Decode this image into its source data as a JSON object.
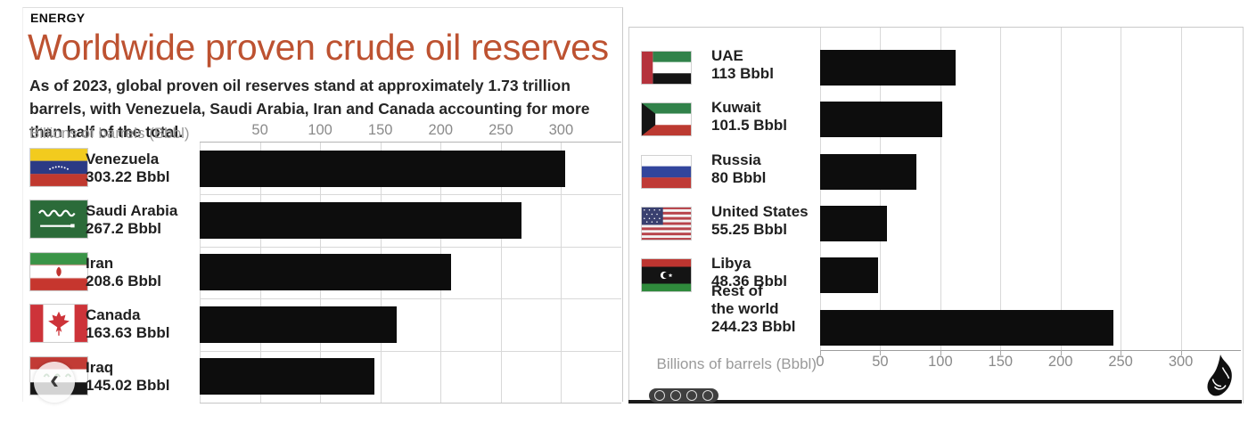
{
  "header": {
    "kicker": "ENERGY",
    "title": "Worldwide proven crude oil reserves",
    "subtitle": "As of 2023, global proven oil reserves stand at approximately 1.73 trillion barrels, with Venezuela, Saudi Arabia, Iran and Canada accounting for more than half of the total.",
    "accent_color": "#bd5231",
    "bar_color": "#0d0d0d",
    "grid_color": "#d8d8d8"
  },
  "chart_data": {
    "type": "bar",
    "orientation": "horizontal",
    "title": "Worldwide proven crude oil reserves",
    "subtitle": "As of 2023, global proven oil reserves stand at approximately 1.73 trillion barrels, with Venezuela, Saudi Arabia, Iran and Canada accounting for more than half of the total.",
    "categories": [
      "Venezuela",
      "Saudi Arabia",
      "Iran",
      "Canada",
      "Iraq",
      "UAE",
      "Kuwait",
      "Russia",
      "United States",
      "Libya",
      "Rest of the world"
    ],
    "values": [
      303.22,
      267.2,
      208.6,
      163.63,
      145.02,
      113,
      101.5,
      80,
      55.25,
      48.36,
      244.23
    ],
    "unit": "Bbbl",
    "xlabel": "Billions of barrels (Bbbl)",
    "xlim": [
      0,
      350
    ],
    "xticks": [
      0,
      50,
      100,
      150,
      200,
      250,
      300
    ],
    "grid": "vertical",
    "legend": "none",
    "bar_color": "#0d0d0d"
  },
  "panels": {
    "left": {
      "axis_label": "Billions of barrels (Bbbl)",
      "ticks": [
        50,
        100,
        150,
        200,
        250,
        300
      ],
      "rows": [
        {
          "country": "Venezuela",
          "lines": [
            "Venezuela"
          ],
          "value": 303.22,
          "value_label": "303.22 Bbbl",
          "flag": "venezuela"
        },
        {
          "country": "Saudi Arabia",
          "lines": [
            "Saudi Arabia"
          ],
          "value": 267.2,
          "value_label": "267.2 Bbbl",
          "flag": "saudi-arabia"
        },
        {
          "country": "Iran",
          "lines": [
            "Iran"
          ],
          "value": 208.6,
          "value_label": "208.6 Bbbl",
          "flag": "iran"
        },
        {
          "country": "Canada",
          "lines": [
            "Canada"
          ],
          "value": 163.63,
          "value_label": "163.63 Bbbl",
          "flag": "canada"
        },
        {
          "country": "Iraq",
          "lines": [
            "Iraq"
          ],
          "value": 145.02,
          "value_label": "145.02 Bbbl",
          "flag": "iraq"
        }
      ]
    },
    "right": {
      "axis_label": "Billions of barrels (Bbbl)",
      "ticks": [
        0,
        50,
        100,
        150,
        200,
        250,
        300
      ],
      "rows": [
        {
          "country": "UAE",
          "lines": [
            "UAE"
          ],
          "value": 113,
          "value_label": "113 Bbbl",
          "flag": "uae"
        },
        {
          "country": "Kuwait",
          "lines": [
            "Kuwait"
          ],
          "value": 101.5,
          "value_label": "101.5 Bbbl",
          "flag": "kuwait"
        },
        {
          "country": "Russia",
          "lines": [
            "Russia"
          ],
          "value": 80,
          "value_label": "80 Bbbl",
          "flag": "russia"
        },
        {
          "country": "United States",
          "lines": [
            "United States"
          ],
          "value": 55.25,
          "value_label": "55.25 Bbbl",
          "flag": "united-states"
        },
        {
          "country": "Libya",
          "lines": [
            "Libya"
          ],
          "value": 48.36,
          "value_label": "48.36 Bbbl",
          "flag": "libya"
        },
        {
          "country": "Rest of the world",
          "lines": [
            "Rest of",
            "the world"
          ],
          "value": 244.23,
          "value_label": "244.23 Bbbl",
          "flag": null
        }
      ]
    }
  },
  "icons": {
    "prev_button": "chevron-left-icon",
    "prev_glyph": "‹",
    "logo": "al-jazeera-logo",
    "license_badge": "creative-commons-badge"
  }
}
